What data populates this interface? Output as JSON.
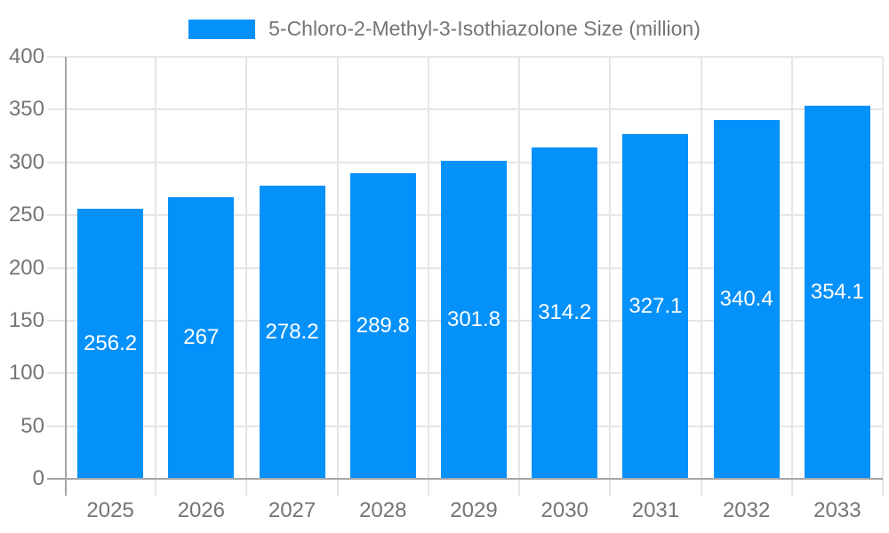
{
  "legend": {
    "label": "5-Chloro-2-Methyl-3-Isothiazolone Size (million)",
    "swatch_color": "#0591fa"
  },
  "chart_data": {
    "type": "bar",
    "title": "5-Chloro-2-Methyl-3-Isothiazolone Size (million)",
    "series_name": "5-Chloro-2-Methyl-3-Isothiazolone Size (million)",
    "categories": [
      "2025",
      "2026",
      "2027",
      "2028",
      "2029",
      "2030",
      "2031",
      "2032",
      "2033"
    ],
    "values": [
      256.2,
      267,
      278.2,
      289.8,
      301.8,
      314.2,
      327.1,
      340.4,
      354.1
    ],
    "value_labels": [
      "256.2",
      "267",
      "278.2",
      "289.8",
      "301.8",
      "314.2",
      "327.1",
      "340.4",
      "354.1"
    ],
    "xlabel": "",
    "ylabel": "",
    "ylim": [
      0,
      400
    ],
    "yticks": [
      0,
      50,
      100,
      150,
      200,
      250,
      300,
      350,
      400
    ],
    "grid": true,
    "legend_position": "top",
    "value_label_position": "middle-of-bar",
    "colors": {
      "bar": "#0591fa",
      "value_text": "#ffffff",
      "axis_text": "#757575",
      "gridline": "#e6e6e6",
      "axis_line": "#a6a6a6"
    }
  }
}
